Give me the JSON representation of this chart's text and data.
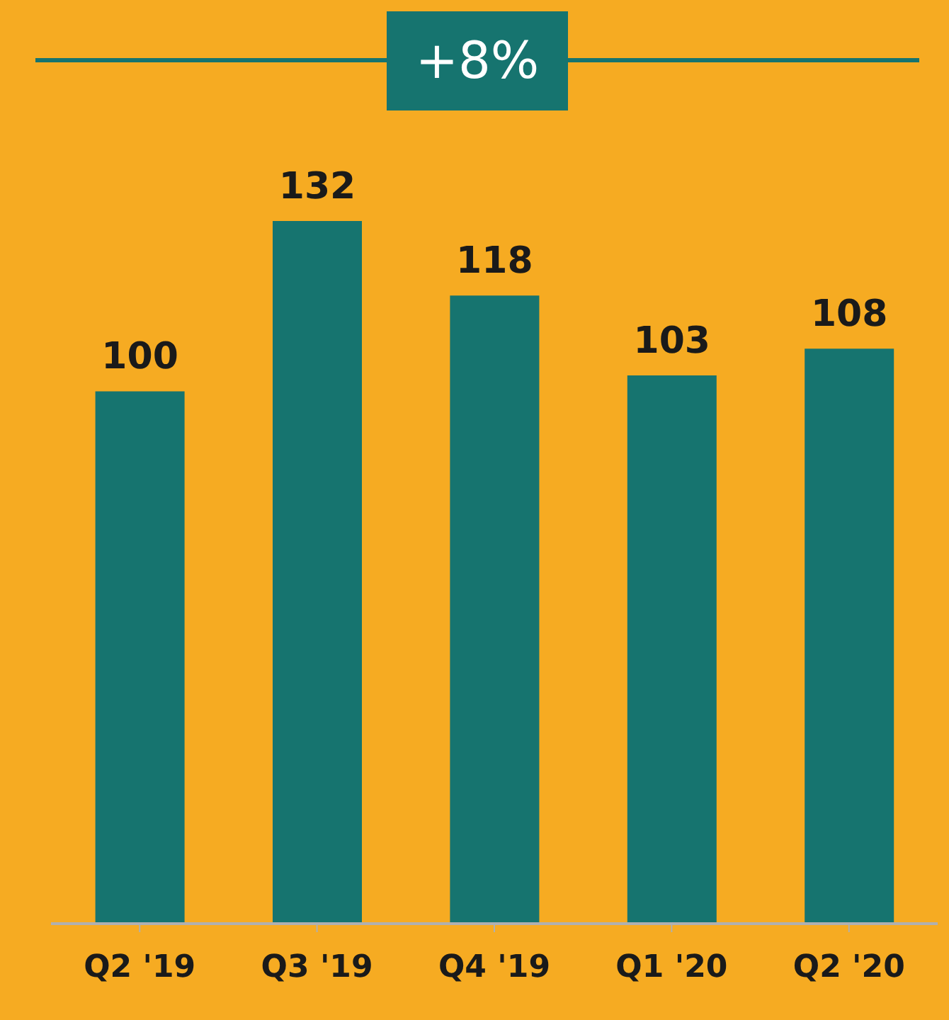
{
  "chart_data": {
    "type": "bar",
    "categories": [
      "Q2 '19",
      "Q3 '19",
      "Q4 '19",
      "Q1 '20",
      "Q2 '20"
    ],
    "values": [
      100,
      132,
      118,
      103,
      108
    ],
    "color": "#16746f",
    "data_labels": true,
    "annotations": [
      "+8%"
    ]
  }
}
